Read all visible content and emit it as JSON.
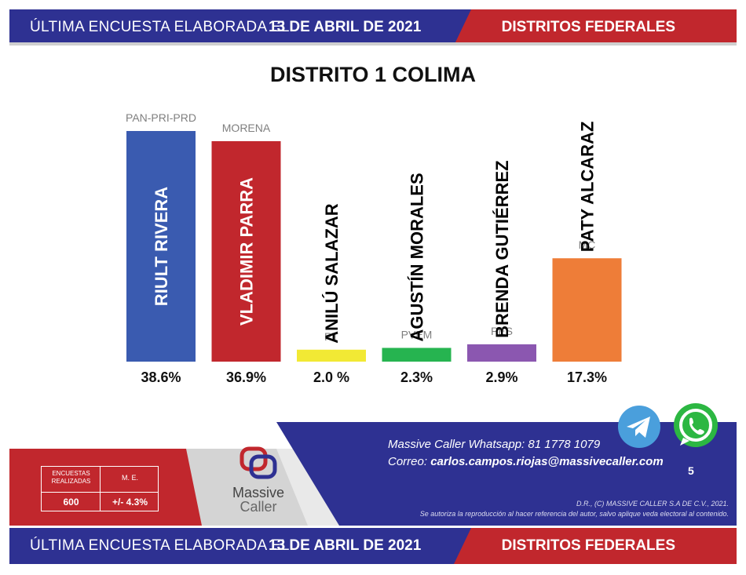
{
  "header": {
    "lead": "ÚLTIMA ENCUESTA ELABORADA EL",
    "date": "13 DE ABRIL DE 2021",
    "right_title": "DISTRITOS FEDERALES"
  },
  "chart_data": {
    "type": "bar",
    "title": "DISTRITO 1 COLIMA",
    "categories": [
      "PAN-PRI-PRD",
      "MORENA",
      "PT",
      "PVEM",
      "PES",
      "MC"
    ],
    "candidates": [
      "RIULT RIVERA",
      "VLADIMIR  PARRA",
      "ANILÚ SALAZAR",
      "AGUSTÍN MORALES",
      "BRENDA GUTIÉRREZ",
      "PATY ALCARAZ"
    ],
    "values": [
      38.6,
      36.9,
      2.0,
      2.3,
      2.9,
      17.3
    ],
    "value_labels": [
      "38.6%",
      "36.9%",
      "2.0 %",
      "2.3%",
      "2.9%",
      "17.3%"
    ],
    "colors": [
      "#3a5bb0",
      "#c1272d",
      "#f2e934",
      "#26b450",
      "#8b57b0",
      "#ee7d38"
    ],
    "candidate_label_colors": [
      "#ffffff",
      "#ffffff",
      "#000000",
      "#000000",
      "#000000",
      "#000000"
    ],
    "ylim": [
      0,
      38.6
    ]
  },
  "footer": {
    "whatsapp_label": "Massive Caller Whatsapp:",
    "whatsapp_number": "81 1778 1079",
    "email_label": "Correo:",
    "email": "carlos.campos.riojas@massivecaller.com",
    "page_number": "5",
    "legal_line1": "D.R., (C) MASSIVE CALLER S.A DE C.V., 2021.",
    "legal_line2": "Se autoriza la reproducción al hacer referencia del autor, salvo aplique veda electoral al contenido.",
    "stats": {
      "surveys_header": "ENCUESTAS REALIZADAS",
      "me_header": "M. E.",
      "surveys_value": "600",
      "me_value": "+/- 4.3%"
    },
    "brand_line1": "Massive",
    "brand_line2": "Caller",
    "telegram_icon": "telegram-icon",
    "whatsapp_icon": "whatsapp-icon"
  },
  "colors": {
    "banner_blue": "#2e3192",
    "banner_red": "#c1272d"
  }
}
